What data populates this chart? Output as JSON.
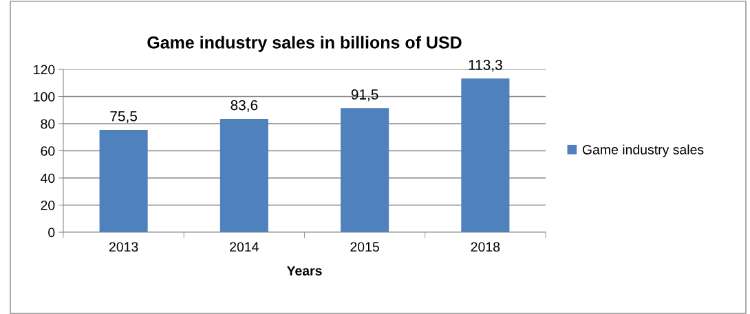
{
  "chart_data": {
    "type": "bar",
    "title": "Game industry sales in billions of USD",
    "xlabel": "Years",
    "categories": [
      "2013",
      "2014",
      "2015",
      "2018"
    ],
    "series": [
      {
        "name": "Game industry sales",
        "color": "#4f81bd",
        "values": [
          75.5,
          83.6,
          91.5,
          113.3
        ],
        "value_labels": [
          "75,5",
          "83,6",
          "91,5",
          "113,3"
        ]
      }
    ],
    "ylim": [
      0,
      120
    ],
    "yticks": [
      0,
      20,
      40,
      60,
      80,
      100,
      120
    ],
    "grid": "y",
    "legend": "right"
  }
}
